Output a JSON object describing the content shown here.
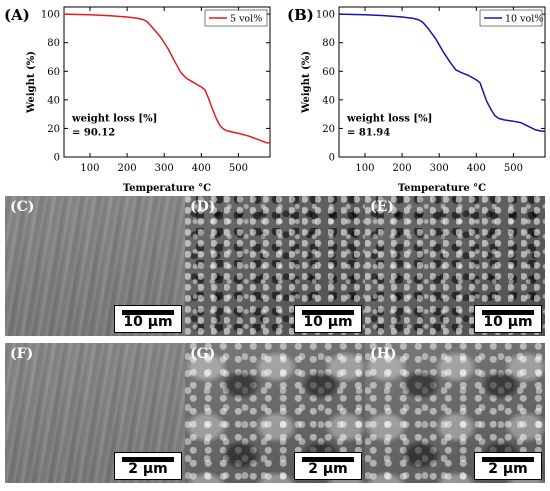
{
  "chart_data": [
    {
      "type": "line",
      "panel_label": "(A)",
      "xlabel": "Temperature °C",
      "ylabel": "Weight (%)",
      "xlim": [
        30,
        585
      ],
      "ylim": [
        0,
        105
      ],
      "xticks": [
        100,
        200,
        300,
        400,
        500
      ],
      "yticks": [
        0,
        20,
        40,
        60,
        80,
        100
      ],
      "legend_position": "top-right",
      "annotation_lines": [
        "weight loss [%]",
        "= 90.12"
      ],
      "series": [
        {
          "name": "5 vol%",
          "color": "#e8191f",
          "x": [
            30,
            100,
            150,
            200,
            230,
            245,
            255,
            270,
            290,
            310,
            330,
            345,
            360,
            380,
            400,
            410,
            418,
            428,
            440,
            450,
            460,
            470,
            500,
            530,
            560,
            575,
            585
          ],
          "y": [
            100,
            99.6,
            99,
            98,
            97,
            96,
            94.5,
            90,
            84,
            76,
            66,
            59,
            55,
            52,
            49,
            47,
            42,
            35,
            27,
            22,
            19.5,
            18.3,
            16.5,
            14.5,
            11.5,
            10,
            9.9
          ]
        }
      ]
    },
    {
      "type": "line",
      "panel_label": "(B)",
      "xlabel": "Temperature °C",
      "ylabel": "Weight (%)",
      "xlim": [
        30,
        585
      ],
      "ylim": [
        0,
        105
      ],
      "xticks": [
        100,
        200,
        300,
        400,
        500
      ],
      "yticks": [
        0,
        20,
        40,
        60,
        80,
        100
      ],
      "legend_position": "top-right",
      "annotation_lines": [
        "weight loss [%]",
        "= 81.94"
      ],
      "series": [
        {
          "name": "10 vol%",
          "color": "#1515a8",
          "x": [
            30,
            100,
            150,
            200,
            230,
            245,
            255,
            270,
            290,
            310,
            330,
            345,
            360,
            380,
            400,
            410,
            418,
            428,
            440,
            450,
            460,
            475,
            500,
            520,
            540,
            560,
            575,
            585
          ],
          "y": [
            100,
            99.6,
            99,
            98,
            97,
            96,
            94.5,
            90,
            83,
            74,
            66,
            61,
            59,
            57,
            54,
            52,
            46,
            39,
            33,
            29,
            27,
            26,
            25,
            24,
            21.5,
            19,
            18.1,
            18.1
          ]
        }
      ]
    }
  ],
  "micrographs": [
    {
      "label": "(C)",
      "scale": "10 μm",
      "texture": "smooth"
    },
    {
      "label": "(D)",
      "scale": "10 μm",
      "texture": "rough"
    },
    {
      "label": "(E)",
      "scale": "10 μm",
      "texture": "rough"
    },
    {
      "label": "(F)",
      "scale": "2 μm",
      "texture": "smooth"
    },
    {
      "label": "(G)",
      "scale": "2 μm",
      "texture": "coarse"
    },
    {
      "label": "(H)",
      "scale": "2 μm",
      "texture": "coarse"
    }
  ]
}
